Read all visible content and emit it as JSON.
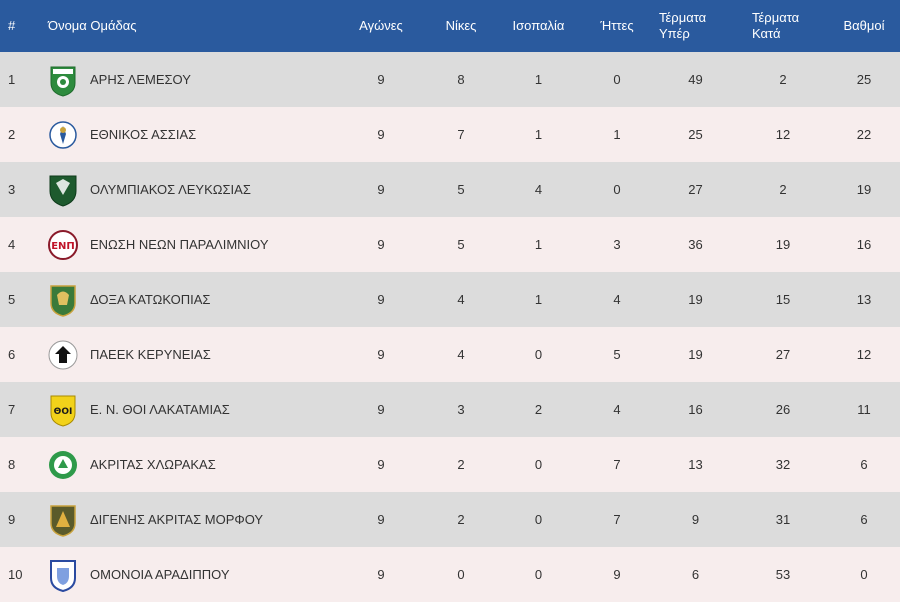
{
  "header": {
    "pos": "#",
    "team": "Όνομα Ομάδας",
    "played": "Αγώνες",
    "wins": "Νίκες",
    "draws": "Ισοπαλία",
    "losses": "Ήττες",
    "goals_for": "Τέρματα Υπέρ",
    "goals_against": "Τέρματα Κατά",
    "points": "Βαθμοί"
  },
  "colors": {
    "header_bg": "#2a5a9e",
    "row_odd": "#dcdcdc",
    "row_even": "#f7eded"
  },
  "rows": [
    {
      "pos": "1",
      "team": "ΑΡΗΣ ΛΕΜΕΣΟΥ",
      "crest": "aris-limassol-crest",
      "played": "9",
      "wins": "8",
      "draws": "1",
      "losses": "0",
      "gf": "49",
      "ga": "2",
      "pts": "25"
    },
    {
      "pos": "2",
      "team": "ΕΘΝΙΚΟΣ ΑΣΣΙΑΣ",
      "crest": "ethnikos-assias-crest",
      "played": "9",
      "wins": "7",
      "draws": "1",
      "losses": "1",
      "gf": "25",
      "ga": "12",
      "pts": "22"
    },
    {
      "pos": "3",
      "team": "ΟΛΥΜΠΙΑΚΟΣ ΛΕΥΚΩΣΙΑΣ",
      "crest": "olympiakos-nicosia-crest",
      "played": "9",
      "wins": "5",
      "draws": "4",
      "losses": "0",
      "gf": "27",
      "ga": "2",
      "pts": "19"
    },
    {
      "pos": "4",
      "team": "ΕΝΩΣΗ ΝΕΩΝ ΠΑΡΑΛΙΜΝΙΟΥ",
      "crest": "enp-crest",
      "played": "9",
      "wins": "5",
      "draws": "1",
      "losses": "3",
      "gf": "36",
      "ga": "19",
      "pts": "16"
    },
    {
      "pos": "5",
      "team": "ΔΟΞΑ ΚΑΤΩΚΟΠΙΑΣ",
      "crest": "doxa-katokopias-crest",
      "played": "9",
      "wins": "4",
      "draws": "1",
      "losses": "4",
      "gf": "19",
      "ga": "15",
      "pts": "13"
    },
    {
      "pos": "6",
      "team": "ΠΑΕΕΚ ΚΕΡΥΝΕΙΑΣ",
      "crest": "paeek-crest",
      "played": "9",
      "wins": "4",
      "draws": "0",
      "losses": "5",
      "gf": "19",
      "ga": "27",
      "pts": "12"
    },
    {
      "pos": "7",
      "team": "Ε. Ν. ΘΟΙ ΛΑΚΑΤΑΜΙΑΣ",
      "crest": "thoi-lakatamias-crest",
      "played": "9",
      "wins": "3",
      "draws": "2",
      "losses": "4",
      "gf": "16",
      "ga": "26",
      "pts": "11"
    },
    {
      "pos": "8",
      "team": "ΑΚΡΙΤΑΣ ΧΛΩΡΑΚΑΣ",
      "crest": "akritas-chlorakas-crest",
      "played": "9",
      "wins": "2",
      "draws": "0",
      "losses": "7",
      "gf": "13",
      "ga": "32",
      "pts": "6"
    },
    {
      "pos": "9",
      "team": "ΔΙΓΕΝΗΣ ΑΚΡΙΤΑΣ ΜΟΡΦΟΥ",
      "crest": "digenis-morfou-crest",
      "played": "9",
      "wins": "2",
      "draws": "0",
      "losses": "7",
      "gf": "9",
      "ga": "31",
      "pts": "6"
    },
    {
      "pos": "10",
      "team": "ΟΜΟΝΟΙΑ ΑΡΑΔΙΠΠΟΥ",
      "crest": "omonia-aradippou-crest",
      "played": "9",
      "wins": "0",
      "draws": "0",
      "losses": "9",
      "gf": "6",
      "ga": "53",
      "pts": "0"
    }
  ]
}
